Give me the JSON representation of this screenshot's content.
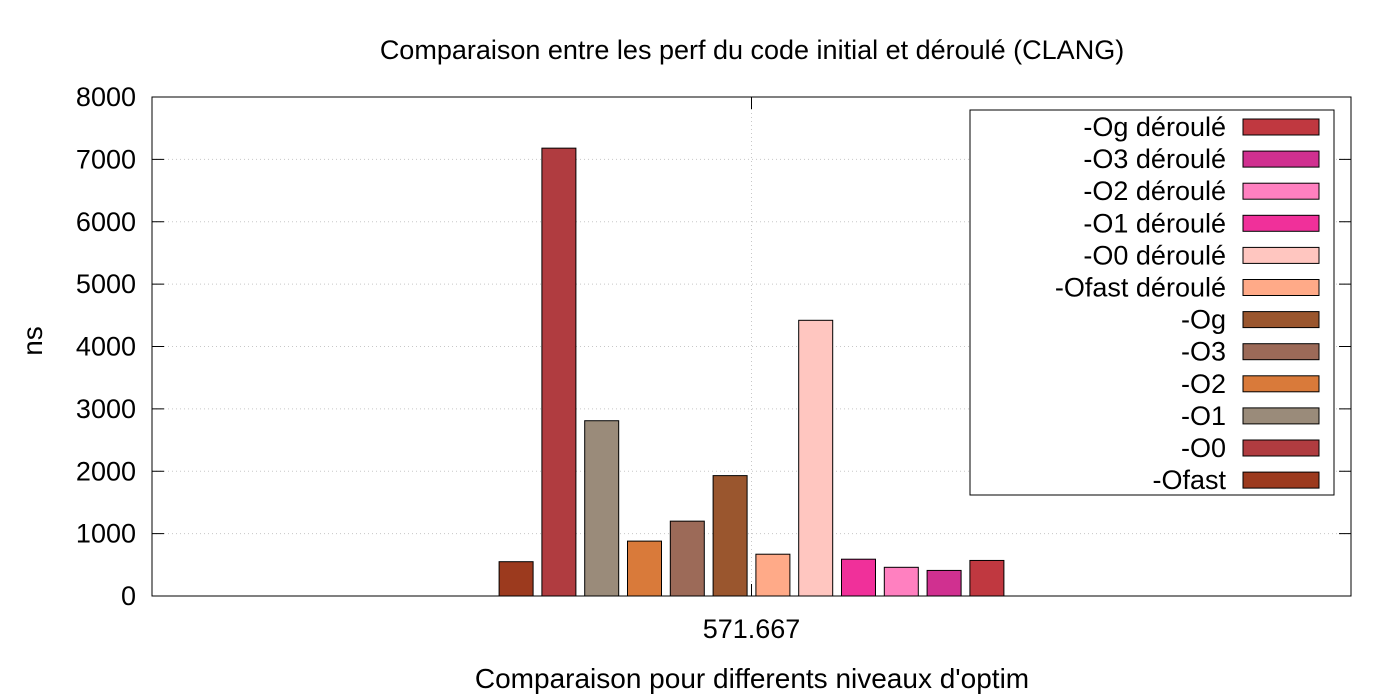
{
  "chart_data": {
    "type": "bar",
    "title": "Comparaison entre les perf du code initial et déroulé (CLANG)",
    "xlabel": "Comparaison pour differents niveaux d'optim",
    "ylabel": "ns",
    "ylim": [
      0,
      8000
    ],
    "yticks": [
      0,
      1000,
      2000,
      3000,
      4000,
      5000,
      6000,
      7000,
      8000
    ],
    "categories": [
      "571.667"
    ],
    "grid": true,
    "legend_position": "top-right",
    "series": [
      {
        "name": "-Ofast",
        "values": [
          550
        ],
        "color": "#9c3a1e"
      },
      {
        "name": "-O0",
        "values": [
          7180
        ],
        "color": "#b03c40"
      },
      {
        "name": "-O1",
        "values": [
          2810
        ],
        "color": "#9a8b7a"
      },
      {
        "name": "-O2",
        "values": [
          880
        ],
        "color": "#d97a3a"
      },
      {
        "name": "-O3",
        "values": [
          1200
        ],
        "color": "#9c6a58"
      },
      {
        "name": "-Og",
        "values": [
          1930
        ],
        "color": "#9a562e"
      },
      {
        "name": "-Ofast déroulé",
        "values": [
          670
        ],
        "color": "#ffaa88"
      },
      {
        "name": "-O0 déroulé",
        "values": [
          4420
        ],
        "color": "#ffc6c0"
      },
      {
        "name": "-O1 déroulé",
        "values": [
          590
        ],
        "color": "#f0309a"
      },
      {
        "name": "-O2 déroulé",
        "values": [
          460
        ],
        "color": "#ff80c0"
      },
      {
        "name": "-O3 déroulé",
        "values": [
          410
        ],
        "color": "#d03090"
      },
      {
        "name": "-Og déroulé",
        "values": [
          570
        ],
        "color": "#c03840"
      }
    ]
  }
}
